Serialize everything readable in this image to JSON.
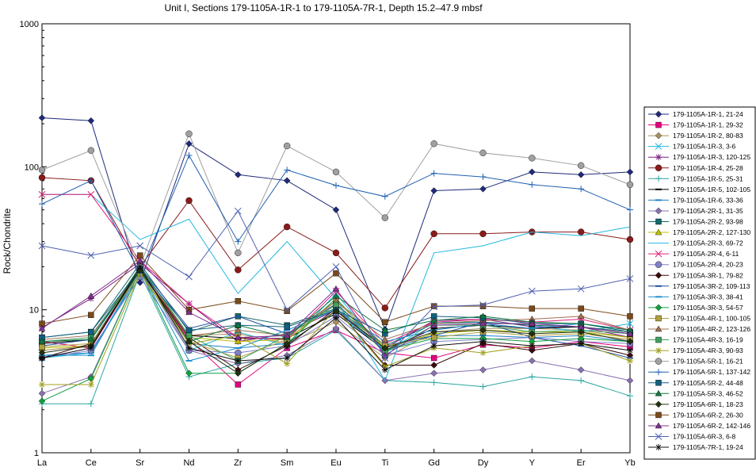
{
  "chart_data": {
    "type": "line",
    "title": "Unit I, Sections 179-1105A-1R-1 to 179-1105A-7R-1, Depth 15.2–47.9 mbsf",
    "xlabel": "",
    "ylabel": "Rock/Chondrite",
    "yscale": "log",
    "ylim": [
      1,
      1000
    ],
    "yticks": [
      "1",
      "10",
      "100",
      "1000"
    ],
    "grid": false,
    "legend_position": "right",
    "categories": [
      "La",
      "Ce",
      "Sr",
      "Nd",
      "Zr",
      "Sm",
      "Eu",
      "Ti",
      "Gd",
      "Dy",
      "Y",
      "Er",
      "Yb"
    ],
    "series": [
      {
        "name": "179-1105A-1R-1, 21-24",
        "color": "#1f2a7a",
        "marker": "diamond",
        "values": [
          220,
          210,
          15.5,
          145,
          88,
          80,
          50,
          7.3,
          68,
          70,
          92,
          88,
          92
        ]
      },
      {
        "name": "179-1105A-1R-1, 29-32",
        "color": "#e6007e",
        "marker": "square",
        "values": [
          6.0,
          5.4,
          19,
          6.2,
          3.0,
          5.4,
          7.2,
          5.0,
          4.6,
          5.7,
          5.4,
          6.0,
          5.5
        ]
      },
      {
        "name": "179-1105A-1R-2, 80-83",
        "color": "#a89060",
        "marker": "diamond",
        "values": [
          5.2,
          5.6,
          20,
          6.6,
          6.8,
          5.8,
          8.2,
          4.6,
          7.0,
          7.4,
          7.4,
          7.2,
          6.4
        ]
      },
      {
        "name": "179-1105A-1R-3, 3-6",
        "color": "#20b8e0",
        "marker": "x",
        "values": [
          4.6,
          5.0,
          19,
          5.2,
          7.0,
          5.6,
          13,
          5.0,
          8.2,
          8.2,
          7.8,
          7.0,
          8.0
        ]
      },
      {
        "name": "179-1105A-1R-3, 120-125",
        "color": "#7a2080",
        "marker": "star",
        "values": [
          7.5,
          12,
          21,
          11,
          6.0,
          6.8,
          10,
          5.4,
          8.4,
          8.6,
          7.6,
          7.6,
          6.4
        ]
      },
      {
        "name": "179-1105A-1R-4, 25-28",
        "color": "#8b1a1a",
        "marker": "circle",
        "values": [
          84,
          80,
          20,
          58,
          19,
          38,
          25,
          10.3,
          34,
          34,
          35,
          35,
          31
        ]
      },
      {
        "name": "179-1105A-1R-5, 25-31",
        "color": "#2aa6a0",
        "marker": "plus",
        "values": [
          2.2,
          2.2,
          18,
          3.4,
          4.2,
          4.6,
          7.2,
          3.2,
          3.1,
          2.9,
          3.4,
          3.2,
          2.5
        ]
      },
      {
        "name": "179-1105A-1R-5, 102-105",
        "color": "#000000",
        "marker": "dash",
        "values": [
          5.8,
          6.2,
          20,
          6.6,
          6.3,
          6.3,
          9.4,
          5.2,
          7.4,
          7.8,
          7.4,
          7.6,
          6.8
        ]
      },
      {
        "name": "179-1105A-1R-6, 33-36",
        "color": "#2080c8",
        "marker": "dash",
        "values": [
          4.8,
          5.0,
          18,
          5.8,
          5.4,
          5.8,
          9.8,
          5.2,
          6.6,
          6.6,
          6.4,
          6.6,
          6.0
        ]
      },
      {
        "name": "179-1105A-2R-1, 31-35",
        "color": "#8870b0",
        "marker": "diamond",
        "values": [
          2.6,
          3.4,
          19,
          5.2,
          4.2,
          4.8,
          7.4,
          3.2,
          3.6,
          3.8,
          4.4,
          3.8,
          3.2
        ]
      },
      {
        "name": "179-1105A-2R-2, 93-98",
        "color": "#156868",
        "marker": "square",
        "values": [
          6.4,
          7.0,
          21,
          7.0,
          9.0,
          7.8,
          10.2,
          5.6,
          8.0,
          8.2,
          7.8,
          7.6,
          7.0
        ]
      },
      {
        "name": "179-1105A-2R-2, 127-130",
        "color": "#c0c000",
        "marker": "triangle",
        "values": [
          5.4,
          5.6,
          19,
          6.4,
          6.0,
          6.2,
          11,
          5.4,
          6.8,
          7.2,
          7.0,
          7.0,
          6.4
        ]
      },
      {
        "name": "179-1105A-2R-3, 69-72",
        "color": "#20b8e0",
        "marker": "none",
        "values": [
          64,
          64,
          31,
          43,
          13,
          30,
          12,
          3.2,
          25,
          28,
          35,
          33,
          38
        ]
      },
      {
        "name": "179-1105A-2R-4, 6-11",
        "color": "#e0207a",
        "marker": "x",
        "values": [
          64,
          64,
          22,
          11,
          6.4,
          6.2,
          13.5,
          5.8,
          8.2,
          8.6,
          8.2,
          8.6,
          7.2
        ]
      },
      {
        "name": "179-1105A-2R-4, 20-23",
        "color": "#8080c8",
        "marker": "circle",
        "values": [
          4.6,
          5.2,
          17,
          5.2,
          5.0,
          5.6,
          9.0,
          4.8,
          6.0,
          6.2,
          6.4,
          6.0,
          5.8
        ]
      },
      {
        "name": "179-1105A-3R-1, 79-82",
        "color": "#3a0a0a",
        "marker": "diamond",
        "values": [
          4.6,
          5.8,
          19,
          6.4,
          3.8,
          5.6,
          10.2,
          4.1,
          4.1,
          5.8,
          5.2,
          5.8,
          4.8
        ]
      },
      {
        "name": "179-1105A-3R-2, 109-113",
        "color": "#2050a0",
        "marker": "dash",
        "values": [
          5.6,
          6.2,
          20,
          7.4,
          9.0,
          6.8,
          11,
          5.6,
          6.6,
          8.2,
          6.4,
          5.6,
          4.6
        ]
      },
      {
        "name": "179-1105A-3R-3, 38-41",
        "color": "#2090d0",
        "marker": "dash",
        "values": [
          4.8,
          4.8,
          19,
          4.4,
          5.4,
          7.2,
          10,
          6.0,
          7.2,
          8.0,
          7.4,
          8.0,
          7.2
        ]
      },
      {
        "name": "179-1105A-3R-3, 54-57",
        "color": "#10a040",
        "marker": "diamond",
        "values": [
          2.3,
          3.3,
          19,
          3.6,
          3.6,
          5.8,
          12,
          5.2,
          6.3,
          6.3,
          6.0,
          6.3,
          6.0
        ]
      },
      {
        "name": "179-1105A-4R-1, 100-105",
        "color": "#b0a040",
        "marker": "square",
        "values": [
          5.5,
          5.8,
          18,
          6.0,
          4.6,
          6.2,
          11.5,
          5.6,
          6.4,
          7.0,
          6.6,
          6.8,
          6.2
        ]
      },
      {
        "name": "179-1105A-4R-2, 123-126",
        "color": "#a07050",
        "marker": "triangle",
        "values": [
          6.2,
          6.6,
          19,
          6.6,
          7.2,
          6.6,
          11.5,
          6.2,
          8.0,
          8.4,
          8.6,
          9.0,
          7.2
        ]
      },
      {
        "name": "179-1105A-4R-3, 16-19",
        "color": "#40a060",
        "marker": "square",
        "values": [
          6.0,
          6.4,
          20,
          6.6,
          4.4,
          6.6,
          10.8,
          5.0,
          7.8,
          7.8,
          7.0,
          7.2,
          6.8
        ]
      },
      {
        "name": "179-1105A-4R-3, 90-93",
        "color": "#a0a020",
        "marker": "star",
        "values": [
          3.0,
          3.0,
          18,
          5.8,
          6.6,
          4.2,
          10.2,
          4.0,
          5.4,
          5.0,
          5.6,
          5.8,
          4.4
        ]
      },
      {
        "name": "179-1105A-5R-1, 16-21",
        "color": "#a0a0a0",
        "marker": "circle",
        "values": [
          95,
          130,
          20,
          170,
          25,
          140,
          92,
          44,
          145,
          125,
          115,
          102,
          75
        ]
      },
      {
        "name": "179-1105A-5R-1, 137-142",
        "color": "#2060b0",
        "marker": "plus",
        "values": [
          55,
          80,
          18,
          120,
          30,
          95,
          74,
          62,
          90,
          85,
          75,
          70,
          50
        ]
      },
      {
        "name": "179-1105A-5R-2, 44-48",
        "color": "#106080",
        "marker": "square",
        "values": [
          6.4,
          7.0,
          19,
          7.2,
          7.8,
          7.6,
          10,
          6.8,
          9.0,
          8.8,
          8.0,
          8.0,
          7.0
        ]
      },
      {
        "name": "179-1105A-5R-3, 46-52",
        "color": "#107840",
        "marker": "triangle",
        "values": [
          6.0,
          6.2,
          19,
          6.0,
          7.8,
          6.4,
          12.5,
          7.2,
          8.4,
          9.0,
          8.2,
          8.0,
          7.2
        ]
      },
      {
        "name": "179-1105A-6R-1, 18-23",
        "color": "#203010",
        "marker": "diamond",
        "values": [
          5.0,
          5.6,
          19,
          6.0,
          3.6,
          5.8,
          9.8,
          5.4,
          7.0,
          7.2,
          6.8,
          7.0,
          6.0
        ]
      },
      {
        "name": "179-1105A-6R-2, 26-30",
        "color": "#7a4a1a",
        "marker": "square",
        "values": [
          8.0,
          9.2,
          24,
          10,
          11.5,
          9.8,
          18,
          8.2,
          10.6,
          10.6,
          10.2,
          10.2,
          9.0
        ]
      },
      {
        "name": "179-1105A-6R-2, 142-146",
        "color": "#803090",
        "marker": "triangle",
        "values": [
          7.4,
          12.5,
          22,
          9.6,
          6.4,
          6.6,
          14,
          4.8,
          7.8,
          8.0,
          8.0,
          7.6,
          6.8
        ]
      },
      {
        "name": "179-1105A-6R-3, 6-8",
        "color": "#5060b0",
        "marker": "x",
        "values": [
          28,
          24,
          28,
          17,
          49,
          10,
          20,
          4.6,
          10.5,
          10.8,
          13.5,
          14,
          16.5
        ]
      },
      {
        "name": "179-1105A-7R-1, 19-24",
        "color": "#101010",
        "marker": "star",
        "values": [
          4.6,
          5.4,
          20,
          5.4,
          4.4,
          4.6,
          8.8,
          3.8,
          5.6,
          6.0,
          5.6,
          5.8,
          5.2
        ]
      }
    ]
  }
}
